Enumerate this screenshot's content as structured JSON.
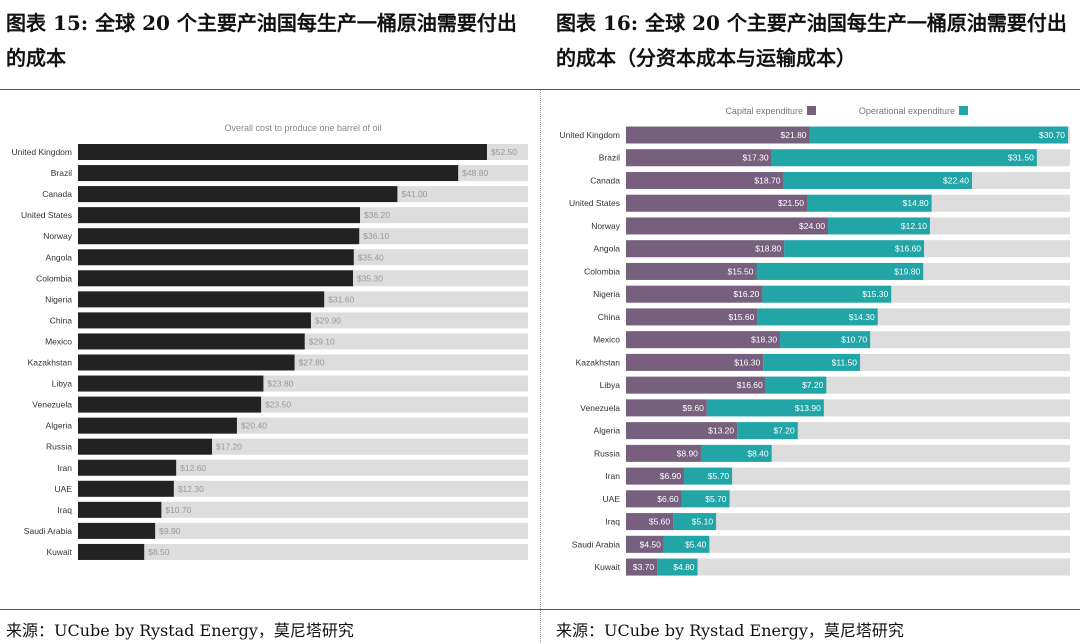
{
  "left": {
    "title": "图表 15: 全球 20 个主要产油国每生产一桶原油需要付出的成本",
    "source": "来源：UCube by Rystad Energy，莫尼塔研究"
  },
  "right": {
    "title": "图表 16: 全球 20 个主要产油国每生产一桶原油需要付出的成本（分资本成本与运输成本）",
    "source": "来源：UCube by Rystad Energy，莫尼塔研究"
  },
  "chart_data": [
    {
      "type": "bar",
      "orientation": "horizontal",
      "title": "Overall cost to produce one barrel of oil",
      "bar_color": "#222222",
      "track_color": "#dddddd",
      "categories": [
        "United Kingdom",
        "Brazil",
        "Canada",
        "United States",
        "Norway",
        "Angola",
        "Colombia",
        "Nigeria",
        "China",
        "Mexico",
        "Kazakhstan",
        "Libya",
        "Venezuela",
        "Algeria",
        "Russia",
        "Iran",
        "UAE",
        "Iraq",
        "Saudi Arabia",
        "Kuwait"
      ],
      "values": [
        52.5,
        48.8,
        41.0,
        36.2,
        36.1,
        35.4,
        35.3,
        31.6,
        29.9,
        29.1,
        27.8,
        23.8,
        23.5,
        20.4,
        17.2,
        12.6,
        12.3,
        10.7,
        9.9,
        8.5
      ],
      "labels": [
        "$52.50",
        "$48.80",
        "$41.00",
        "$36.20",
        "$36.10",
        "$35.40",
        "$35.30",
        "$31.60",
        "$29.90",
        "$29.10",
        "$27.80",
        "$23.80",
        "$23.50",
        "$20.40",
        "$17.20",
        "$12.60",
        "$12.30",
        "$10.70",
        "$9.90",
        "$8.50"
      ]
    },
    {
      "type": "bar",
      "orientation": "horizontal",
      "stacked": true,
      "legend": "top",
      "track_color": "#dddddd",
      "categories": [
        "United Kingdom",
        "Brazil",
        "Canada",
        "United States",
        "Norway",
        "Angola",
        "Colombia",
        "Nigeria",
        "China",
        "Mexico",
        "Kazakhstan",
        "Libya",
        "Venezuela",
        "Algeria",
        "Russia",
        "Iran",
        "UAE",
        "Iraq",
        "Saudi Arabia",
        "Kuwait"
      ],
      "series": [
        {
          "name": "Capital expenditure",
          "color": "#76607e",
          "values": [
            21.8,
            17.3,
            18.7,
            21.5,
            24.0,
            18.8,
            15.5,
            16.2,
            15.6,
            18.3,
            16.3,
            16.6,
            9.6,
            13.2,
            8.9,
            6.9,
            6.6,
            5.6,
            4.5,
            3.7
          ],
          "labels": [
            "$21.80",
            "$17.30",
            "$18.70",
            "$21.50",
            "$24.00",
            "$18.80",
            "$15.50",
            "$16.20",
            "$15.60",
            "$18.30",
            "$16.30",
            "$16.60",
            "$9.60",
            "$13.20",
            "$8.90",
            "$6.90",
            "$6.60",
            "$5.60",
            "$4.50",
            "$3.70"
          ]
        },
        {
          "name": "Operational expenditure",
          "color": "#21a5a6",
          "values": [
            30.7,
            31.5,
            22.4,
            14.8,
            12.1,
            16.6,
            19.8,
            15.3,
            14.3,
            10.7,
            11.5,
            7.2,
            13.9,
            7.2,
            8.4,
            5.7,
            5.7,
            5.1,
            5.4,
            4.8
          ],
          "labels": [
            "$30.70",
            "$31.50",
            "$22.40",
            "$14.80",
            "$12.10",
            "$16.60",
            "$19.80",
            "$15.30",
            "$14.30",
            "$10.70",
            "$11.50",
            "$7.20",
            "$13.90",
            "$7.20",
            "$8.40",
            "$5.70",
            "$5.70",
            "$5.10",
            "$5.40",
            "$4.80"
          ]
        }
      ]
    }
  ]
}
